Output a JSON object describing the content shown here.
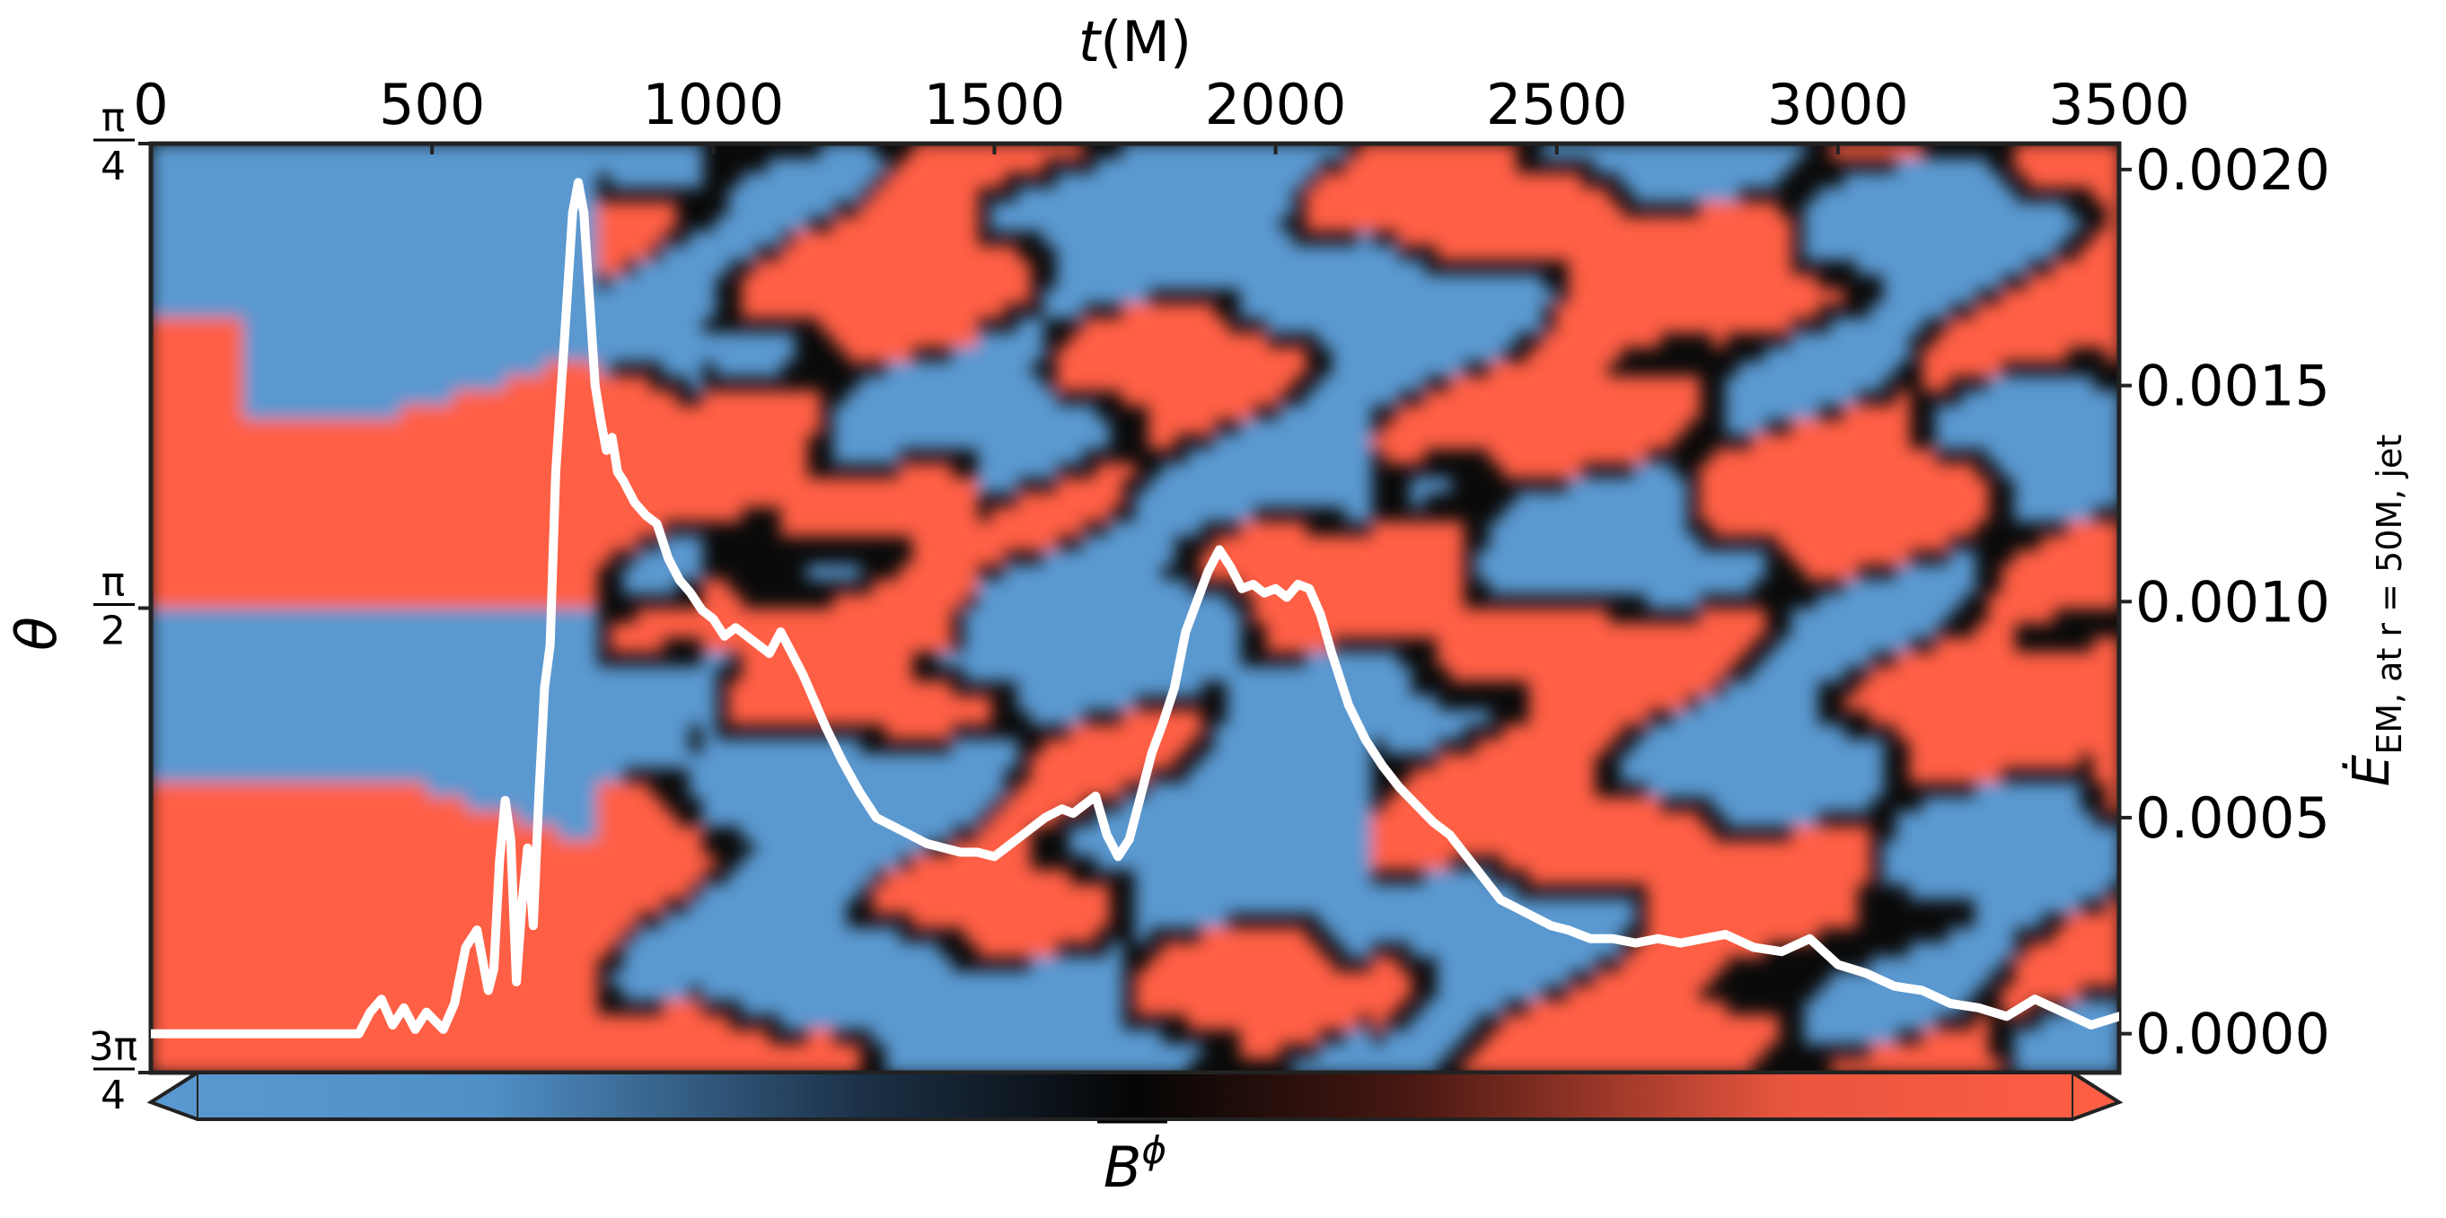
{
  "chart_data": {
    "type": "line",
    "background": "heatmap",
    "top_xlabel_main": "t",
    "top_xlabel_unit": "(M)",
    "xlim": [
      0,
      3500
    ],
    "x_ticks": [
      0,
      500,
      1000,
      1500,
      2000,
      2500,
      3000,
      3500
    ],
    "x_tick_labels": [
      "0",
      "500",
      "1000",
      "1500",
      "2000",
      "2500",
      "3000",
      "3500"
    ],
    "left_ylabel": "θ",
    "left_ticks": [
      {
        "pos": 0.0,
        "num": "π",
        "den": "4"
      },
      {
        "pos": 0.5,
        "num": "π",
        "den": "2"
      },
      {
        "pos": 1.0,
        "num": "3π",
        "den": "4"
      }
    ],
    "right_ylabel_main": "Ė",
    "right_ylabel_sub": "EM, at r = 50M, jet",
    "right_ylim": [
      -9e-05,
      0.00206
    ],
    "right_ticks": [
      0.0,
      0.0005,
      0.001,
      0.0015,
      0.002
    ],
    "right_tick_labels": [
      "0.0000",
      "0.0005",
      "0.0010",
      "0.0015",
      "0.0020"
    ],
    "colorbar_label_main": "B",
    "colorbar_label_sup": "ϕ",
    "colors": {
      "positive": "#ff5f45",
      "negative": "#5a98d0",
      "zero": "#0a0a0a",
      "line": "#ffffff",
      "frame": "#222222"
    },
    "line_series": {
      "x": [
        0,
        200,
        370,
        390,
        410,
        430,
        450,
        470,
        490,
        520,
        540,
        560,
        580,
        600,
        610,
        620,
        630,
        640,
        650,
        660,
        670,
        680,
        690,
        700,
        710,
        720,
        730,
        740,
        750,
        760,
        770,
        780,
        790,
        800,
        810,
        820,
        830,
        840,
        860,
        880,
        900,
        920,
        940,
        960,
        980,
        1000,
        1020,
        1040,
        1060,
        1080,
        1100,
        1120,
        1140,
        1160,
        1180,
        1200,
        1230,
        1260,
        1290,
        1320,
        1350,
        1380,
        1410,
        1440,
        1470,
        1500,
        1530,
        1560,
        1590,
        1620,
        1640,
        1660,
        1680,
        1700,
        1720,
        1740,
        1760,
        1780,
        1800,
        1820,
        1840,
        1860,
        1880,
        1900,
        1920,
        1940,
        1960,
        1980,
        2000,
        2020,
        2040,
        2060,
        2080,
        2100,
        2130,
        2160,
        2190,
        2220,
        2250,
        2280,
        2310,
        2340,
        2370,
        2400,
        2430,
        2460,
        2490,
        2520,
        2560,
        2600,
        2640,
        2680,
        2720,
        2760,
        2800,
        2850,
        2900,
        2950,
        3000,
        3050,
        3100,
        3150,
        3200,
        3250,
        3300,
        3350,
        3400,
        3450,
        3500
      ],
      "y": [
        0.0,
        0.0,
        0.0,
        5e-05,
        8e-05,
        2e-05,
        6e-05,
        1e-05,
        5e-05,
        1e-05,
        7e-05,
        0.0002,
        0.00024,
        0.0001,
        0.00015,
        0.0004,
        0.00054,
        0.00045,
        0.00012,
        0.0003,
        0.00043,
        0.00025,
        0.00055,
        0.0008,
        0.0009,
        0.0013,
        0.0015,
        0.0017,
        0.0019,
        0.00197,
        0.0019,
        0.0017,
        0.0015,
        0.00142,
        0.00135,
        0.00138,
        0.0013,
        0.00128,
        0.00123,
        0.0012,
        0.00118,
        0.0011,
        0.00105,
        0.00102,
        0.00098,
        0.00096,
        0.00092,
        0.00094,
        0.00092,
        0.0009,
        0.00088,
        0.00093,
        0.00088,
        0.00083,
        0.00077,
        0.00071,
        0.00063,
        0.00056,
        0.0005,
        0.00048,
        0.00046,
        0.00044,
        0.00043,
        0.00042,
        0.00042,
        0.00041,
        0.00044,
        0.00047,
        0.0005,
        0.00052,
        0.00051,
        0.00053,
        0.00055,
        0.00046,
        0.00041,
        0.00045,
        0.00055,
        0.00065,
        0.00072,
        0.0008,
        0.00093,
        0.001,
        0.00107,
        0.00112,
        0.00108,
        0.00103,
        0.00104,
        0.00102,
        0.00103,
        0.00101,
        0.00104,
        0.00103,
        0.00097,
        0.00088,
        0.00076,
        0.00068,
        0.00062,
        0.00057,
        0.00053,
        0.00049,
        0.00046,
        0.00041,
        0.00036,
        0.00031,
        0.00029,
        0.00027,
        0.00025,
        0.00024,
        0.00022,
        0.00022,
        0.00021,
        0.00022,
        0.00021,
        0.00022,
        0.00023,
        0.0002,
        0.00019,
        0.00022,
        0.00016,
        0.00014,
        0.00011,
        0.0001,
        7e-05,
        6e-05,
        4e-05,
        8e-05,
        5e-05,
        2e-05,
        4e-05
      ]
    }
  }
}
